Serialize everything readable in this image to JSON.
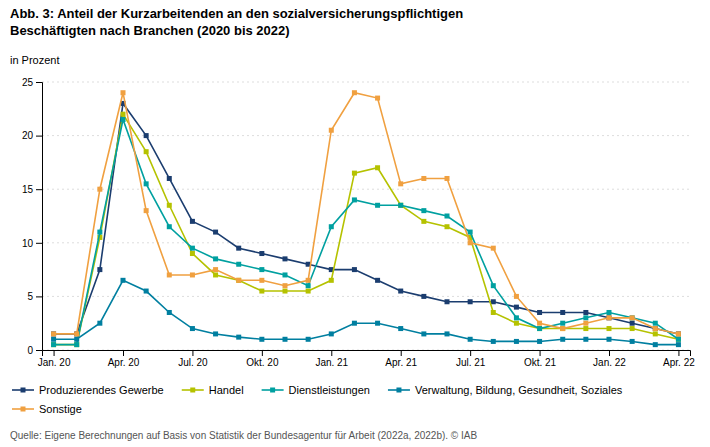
{
  "chart_data": {
    "type": "line",
    "title": "Abb. 3: Anteil der Kurzarbeitenden an den sozialversicherungspflichtigen\nBeschäftigten nach Branchen (2020 bis 2022)",
    "y_label": "in Prozent",
    "source": "Quelle: Eigene Berechnungen auf Basis von Statistik der Bundesagentur für Arbeit (2022a, 2022b). © IAB",
    "categories": [
      "Jan. 20",
      null,
      null,
      "Apr. 20",
      null,
      null,
      "Jul. 20",
      null,
      null,
      "Okt. 20",
      null,
      null,
      "Jan. 21",
      null,
      null,
      "Apr. 21",
      null,
      null,
      "Jul. 21",
      null,
      null,
      "Okt. 21",
      null,
      null,
      "Jan. 22",
      null,
      null,
      "Apr. 22"
    ],
    "series": [
      {
        "name": "Produzierendes Gewerbe",
        "color": "#1b3d6f",
        "values": [
          1.5,
          1.5,
          7.5,
          23.0,
          20.0,
          16.0,
          12.0,
          11.0,
          9.5,
          9.0,
          8.5,
          8.0,
          7.5,
          7.5,
          6.5,
          5.5,
          5.0,
          4.5,
          4.5,
          4.5,
          4.0,
          3.5,
          3.5,
          3.5,
          3.0,
          2.5,
          2.0,
          1.5
        ]
      },
      {
        "name": "Handel",
        "color": "#b5c200",
        "values": [
          0.5,
          0.5,
          10.5,
          22.0,
          18.5,
          13.5,
          9.0,
          7.0,
          6.5,
          5.5,
          5.5,
          5.5,
          6.5,
          16.5,
          17.0,
          13.5,
          12.0,
          11.5,
          10.5,
          3.5,
          2.5,
          2.0,
          2.0,
          2.0,
          2.0,
          2.0,
          1.5,
          1.0
        ]
      },
      {
        "name": "Dienstleistungen",
        "color": "#00a0a0",
        "values": [
          0.5,
          0.5,
          11.0,
          21.5,
          15.5,
          11.5,
          9.5,
          8.5,
          8.0,
          7.5,
          7.0,
          6.0,
          11.5,
          14.0,
          13.5,
          13.5,
          13.0,
          12.5,
          11.0,
          6.0,
          3.0,
          2.0,
          2.5,
          3.0,
          3.5,
          3.0,
          2.5,
          1.0
        ]
      },
      {
        "name": "Verwaltung, Bildung, Gesundheit, Soziales",
        "color": "#007fa0",
        "values": [
          1.0,
          1.0,
          2.5,
          6.5,
          5.5,
          3.5,
          2.0,
          1.5,
          1.2,
          1.0,
          1.0,
          1.0,
          1.5,
          2.5,
          2.5,
          2.0,
          1.5,
          1.5,
          1.0,
          0.8,
          0.8,
          0.8,
          1.0,
          1.0,
          1.0,
          0.8,
          0.5,
          0.5
        ]
      },
      {
        "name": "Sonstige",
        "color": "#f0a040",
        "values": [
          1.5,
          1.5,
          15.0,
          24.0,
          13.0,
          7.0,
          7.0,
          7.5,
          6.5,
          6.5,
          6.0,
          6.5,
          20.5,
          24.0,
          23.5,
          15.5,
          16.0,
          16.0,
          10.0,
          9.5,
          5.0,
          2.5,
          2.0,
          2.5,
          3.0,
          3.0,
          2.0,
          1.5
        ]
      }
    ],
    "ylim": [
      0,
      25
    ],
    "yticks": [
      0,
      5,
      10,
      15,
      20,
      25
    ],
    "grid": true,
    "legend": "bottom",
    "marker": "square",
    "line_style": "solid"
  }
}
